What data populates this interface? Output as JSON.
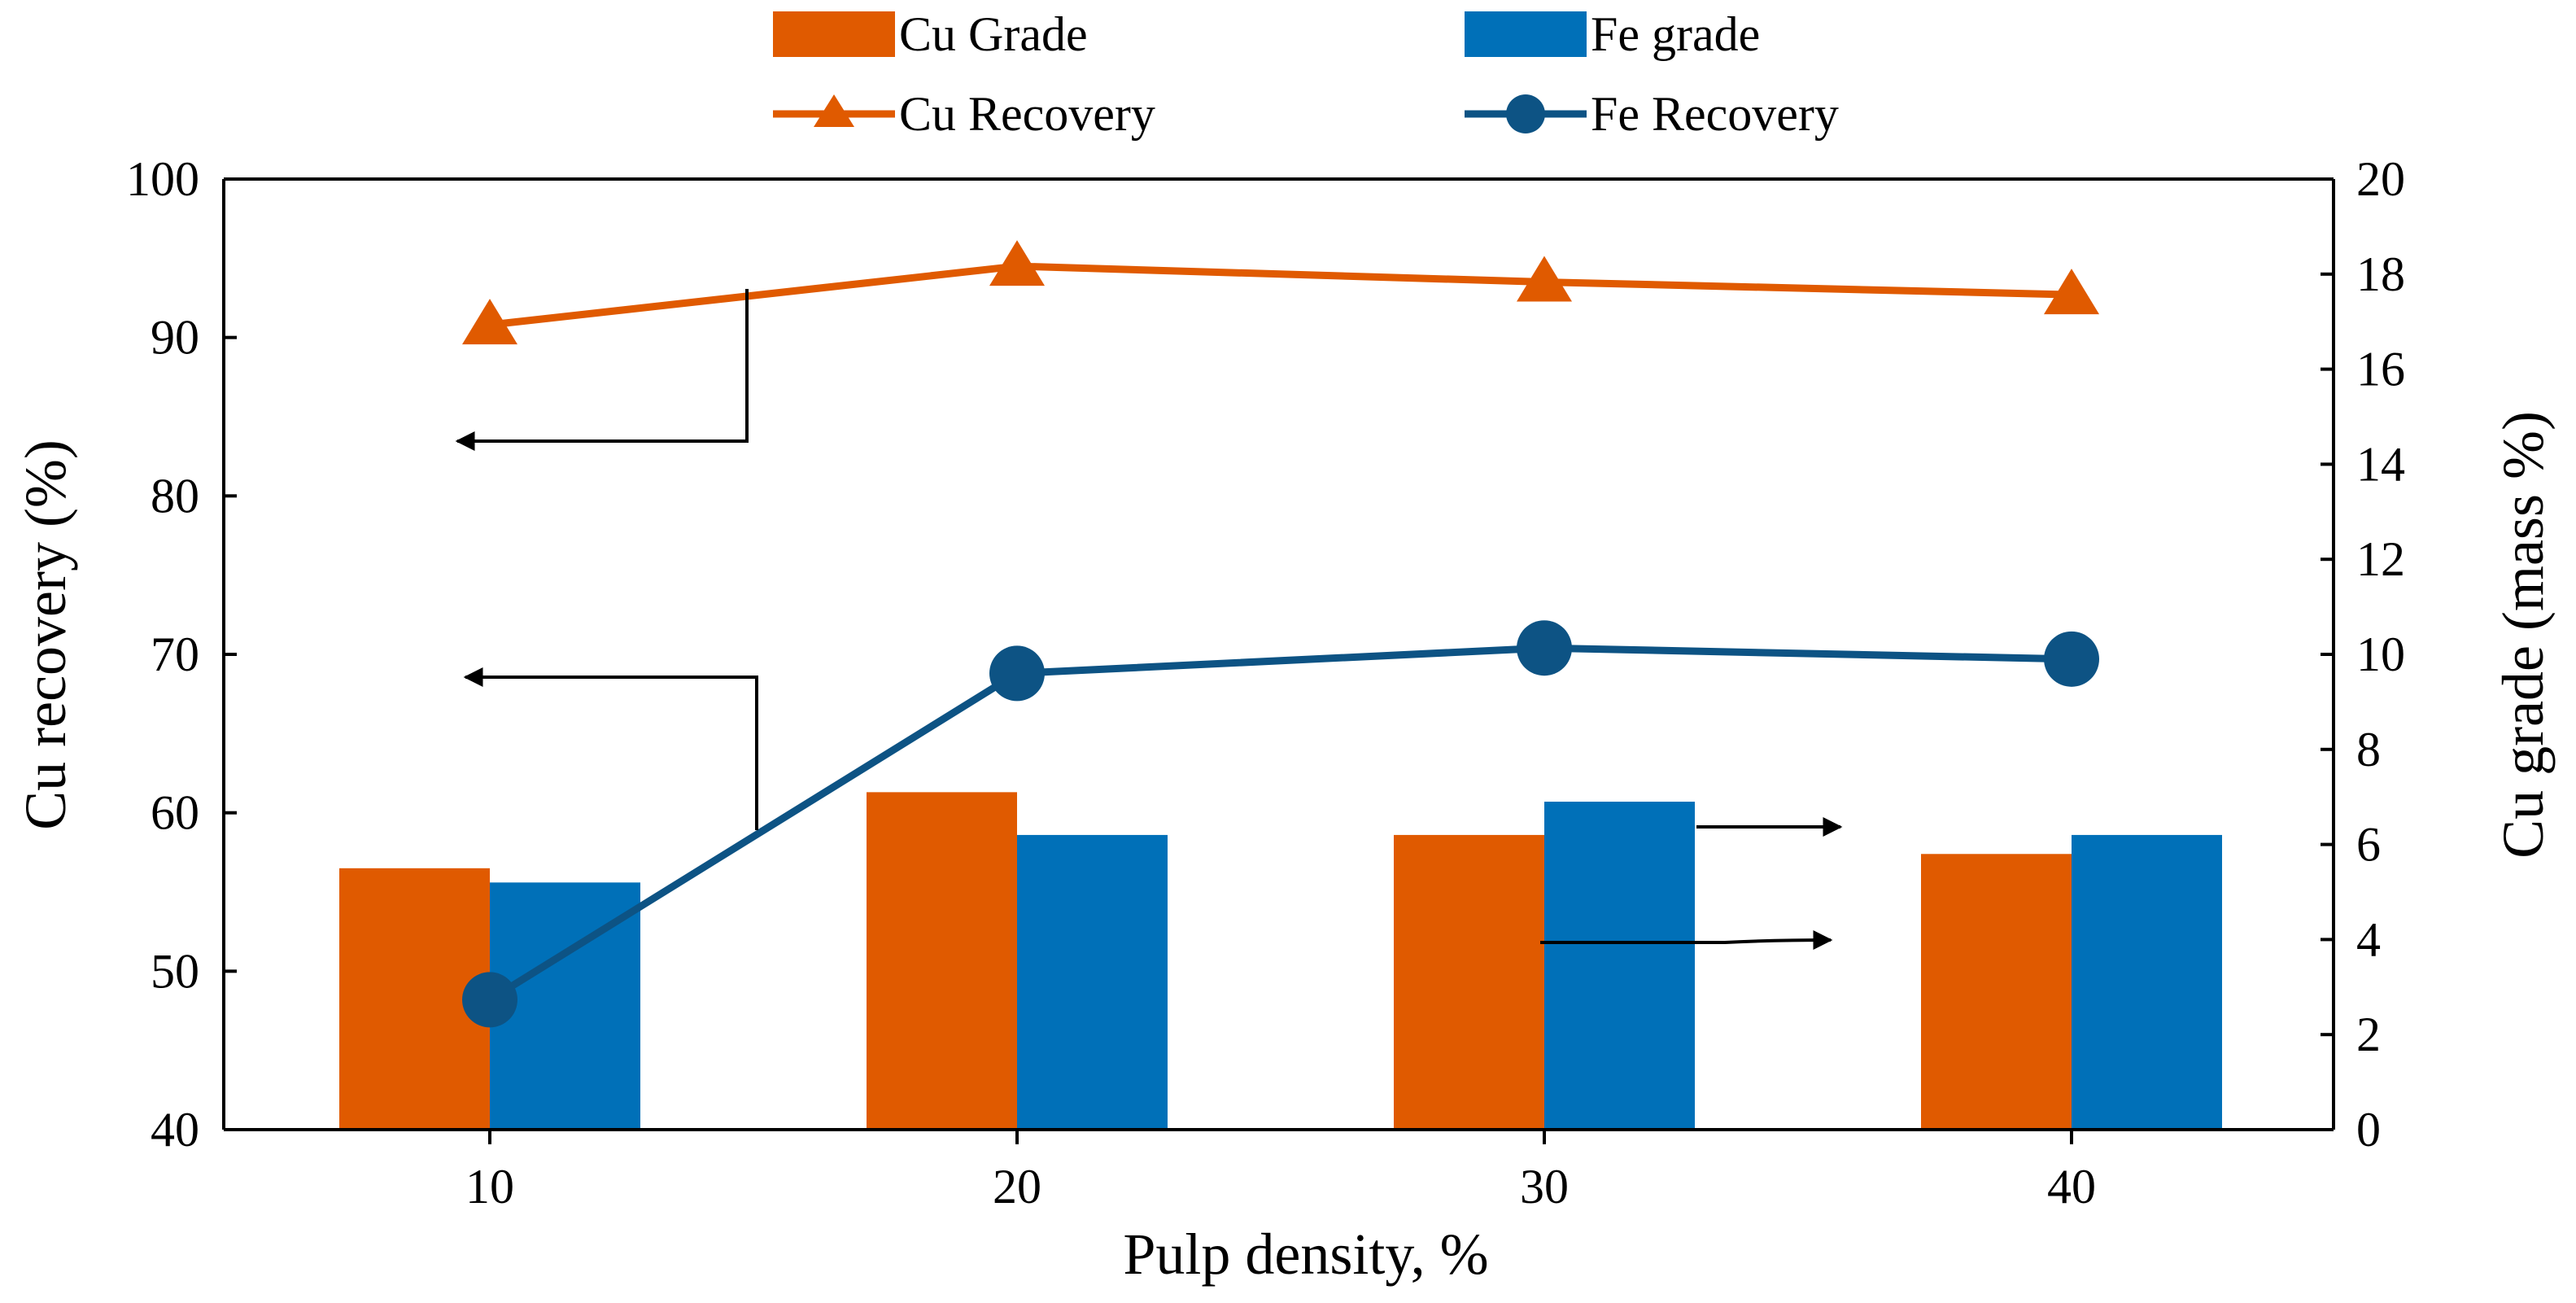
{
  "chart_data": {
    "type": "bar-line",
    "x": [
      10,
      20,
      30,
      40
    ],
    "xlabel": "Pulp density, %",
    "ylabel_left": "Cu recovery (%)",
    "ylabel_right": "Cu grade (mass %)",
    "ylim_left": [
      40,
      100
    ],
    "yticks_left": [
      40,
      50,
      60,
      70,
      80,
      90,
      100
    ],
    "ylim_right": [
      0,
      20
    ],
    "yticks_right": [
      0,
      2,
      4,
      6,
      8,
      10,
      12,
      14,
      16,
      18,
      20
    ],
    "bar_series": [
      {
        "name": "Cu Grade",
        "axis": "right",
        "color": "#e05a00",
        "values": [
          5.5,
          7.1,
          6.2,
          5.8
        ]
      },
      {
        "name": "Fe grade",
        "axis": "right",
        "color": "#0070b8",
        "values": [
          5.2,
          6.2,
          6.9,
          6.2
        ]
      }
    ],
    "line_series": [
      {
        "name": "Cu Recovery",
        "axis": "left",
        "color": "#e05a00",
        "marker": "triangle",
        "values": [
          90.8,
          94.5,
          93.5,
          92.7
        ]
      },
      {
        "name": "Fe Recovery",
        "axis": "left",
        "color": "#0d5384",
        "marker": "circle",
        "values": [
          48.2,
          68.8,
          70.4,
          69.7
        ]
      }
    ],
    "grid": false,
    "legend_position": "top"
  }
}
